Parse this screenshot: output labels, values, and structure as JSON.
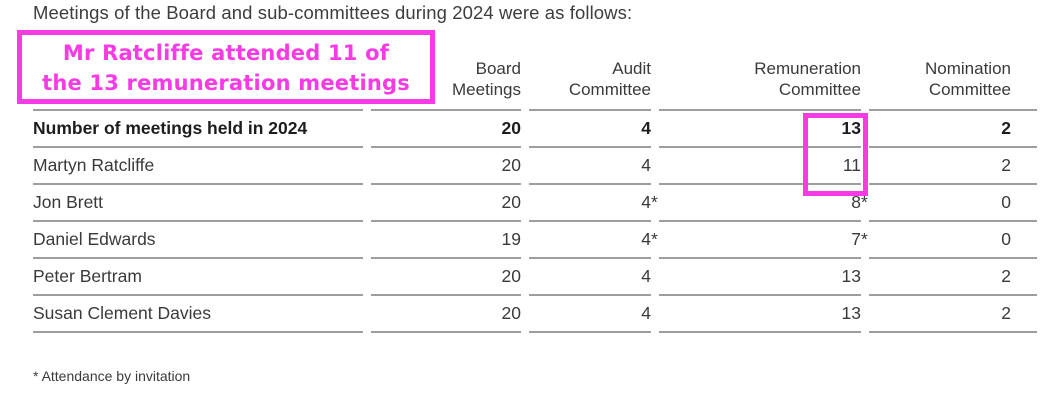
{
  "page": {
    "intro_text": "Meetings of the Board and sub-committees during 2024 were as follows:",
    "footnote": "* Attendance by invitation"
  },
  "annotation": {
    "line1": "Mr Ratcliffe attended 11 of",
    "line2": "the 13 remuneration meetings",
    "color": "#f73be4",
    "highlighted_values": [
      "13",
      "11"
    ],
    "highlighted_column": "Remuneration Committee"
  },
  "table": {
    "rule_color": "#9e9e9e",
    "headers": [
      [
        "",
        ""
      ],
      [
        "Board",
        "Meetings"
      ],
      [
        "Audit",
        "Committee"
      ],
      [
        "Remuneration",
        "Committee"
      ],
      [
        "Nomination",
        "Committee"
      ]
    ],
    "rows": [
      {
        "label": "Number of meetings held in 2024",
        "bold": true,
        "values": [
          {
            "n": "20",
            "s": ""
          },
          {
            "n": "4",
            "s": ""
          },
          {
            "n": "13",
            "s": ""
          },
          {
            "n": "2",
            "s": ""
          }
        ]
      },
      {
        "label": "Martyn Ratcliffe",
        "bold": false,
        "values": [
          {
            "n": "20",
            "s": ""
          },
          {
            "n": "4",
            "s": ""
          },
          {
            "n": "11",
            "s": ""
          },
          {
            "n": "2",
            "s": ""
          }
        ]
      },
      {
        "label": "Jon Brett",
        "bold": false,
        "values": [
          {
            "n": "20",
            "s": ""
          },
          {
            "n": "4",
            "s": "*"
          },
          {
            "n": "8",
            "s": "*"
          },
          {
            "n": "0",
            "s": ""
          }
        ]
      },
      {
        "label": "Daniel Edwards",
        "bold": false,
        "values": [
          {
            "n": "19",
            "s": ""
          },
          {
            "n": "4",
            "s": "*"
          },
          {
            "n": "7",
            "s": "*"
          },
          {
            "n": "0",
            "s": ""
          }
        ]
      },
      {
        "label": "Peter Bertram",
        "bold": false,
        "values": [
          {
            "n": "20",
            "s": ""
          },
          {
            "n": "4",
            "s": ""
          },
          {
            "n": "13",
            "s": ""
          },
          {
            "n": "2",
            "s": ""
          }
        ]
      },
      {
        "label": "Susan Clement Davies",
        "bold": false,
        "values": [
          {
            "n": "20",
            "s": ""
          },
          {
            "n": "4",
            "s": ""
          },
          {
            "n": "13",
            "s": ""
          },
          {
            "n": "2",
            "s": ""
          }
        ]
      }
    ]
  }
}
